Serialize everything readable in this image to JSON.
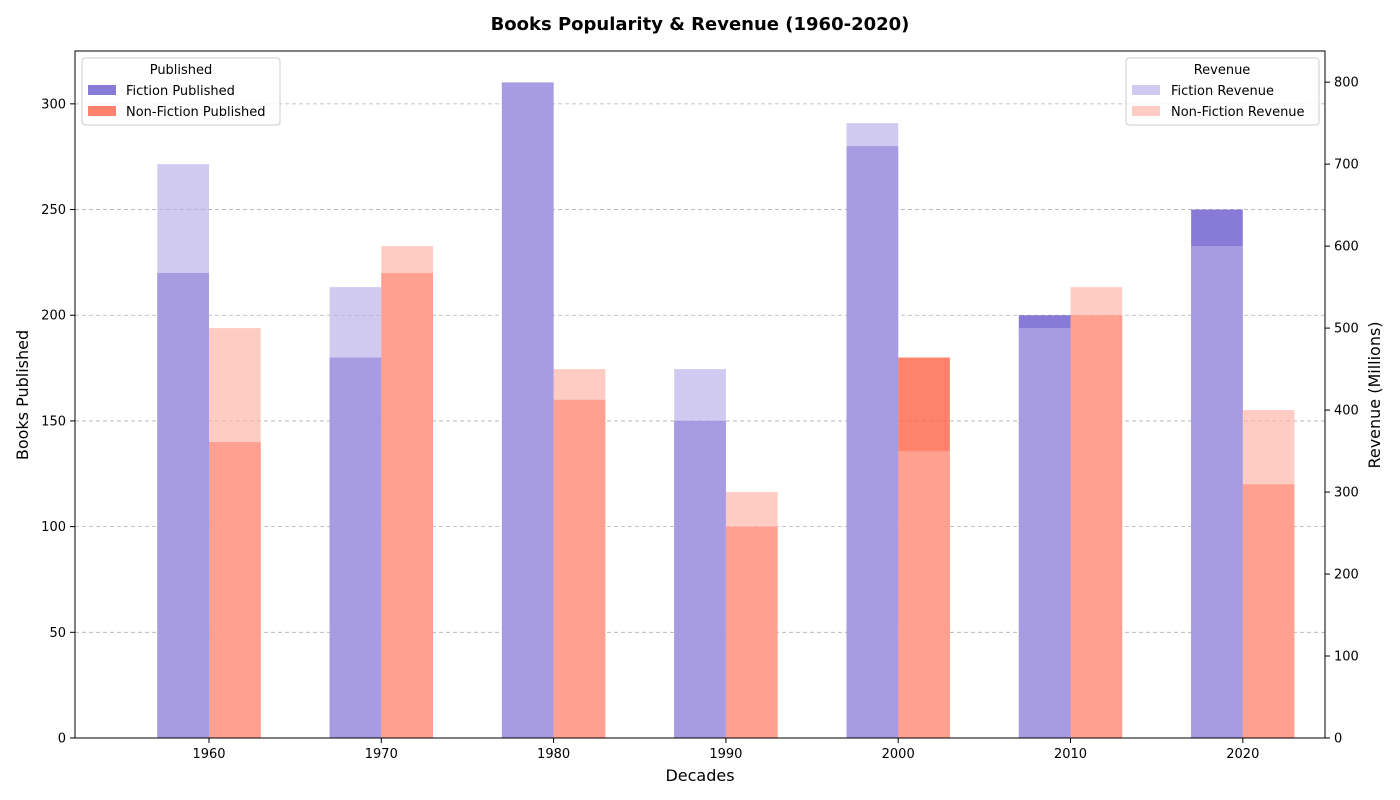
{
  "chart_data": {
    "type": "bar",
    "title": "Books Popularity & Revenue (1960-2020)",
    "xlabel": "Decades",
    "ylabel": "Books Published",
    "y2label": "Revenue (Millions)",
    "categories": [
      "1960",
      "1970",
      "1980",
      "1990",
      "2000",
      "2010",
      "2020"
    ],
    "ylim": [
      0,
      325
    ],
    "y2lim": [
      0,
      838
    ],
    "yticks": [
      0,
      50,
      100,
      150,
      200,
      250,
      300
    ],
    "y2ticks": [
      0,
      100,
      200,
      300,
      400,
      500,
      600,
      700,
      800
    ],
    "grid": true,
    "published_series": [
      {
        "name": "Fiction Published",
        "values": [
          220,
          180,
          310,
          150,
          280,
          200,
          250
        ],
        "color": "#6a5acd"
      },
      {
        "name": "Non-Fiction Published",
        "values": [
          140,
          220,
          160,
          100,
          180,
          200,
          120
        ],
        "color": "#ff6347"
      }
    ],
    "revenue_series": [
      {
        "name": "Fiction Revenue",
        "values": [
          700,
          550,
          800,
          450,
          750,
          500,
          600
        ],
        "color": "#b8aee8"
      },
      {
        "name": "Non-Fiction Revenue",
        "values": [
          500,
          600,
          450,
          300,
          350,
          550,
          400
        ],
        "color": "#ffb1a4"
      }
    ],
    "legend_published": {
      "title": "Published",
      "placement": "top-left"
    },
    "legend_revenue": {
      "title": "Revenue",
      "placement": "top-right"
    }
  }
}
